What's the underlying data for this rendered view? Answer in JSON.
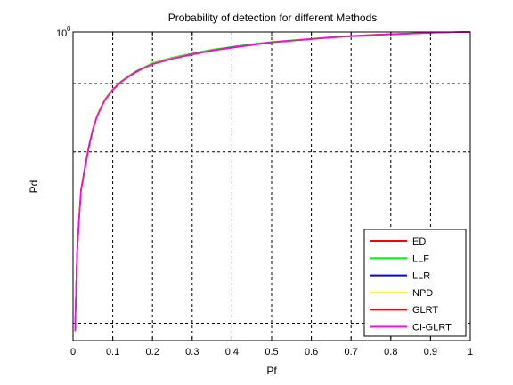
{
  "chart_data": {
    "type": "line",
    "title": "Probability of detection for different Methods",
    "xlabel": "Pf",
    "ylabel": "Pd",
    "xlim": [
      0,
      1
    ],
    "ylim_log10": [
      -1.8,
      0
    ],
    "y_scale": "log",
    "y_tick_label": {
      "base": "10",
      "exp": "0"
    },
    "x_ticks": [
      "0",
      "0.1",
      "0.2",
      "0.3",
      "0.4",
      "0.5",
      "0.6",
      "0.7",
      "0.8",
      "0.9",
      "1"
    ],
    "grid": true,
    "legend_position": "bottom-right",
    "x": [
      0.005,
      0.01,
      0.015,
      0.02,
      0.03,
      0.04,
      0.05,
      0.06,
      0.07,
      0.08,
      0.09,
      0.1,
      0.12,
      0.14,
      0.16,
      0.18,
      0.2,
      0.25,
      0.3,
      0.35,
      0.4,
      0.45,
      0.5,
      0.55,
      0.6,
      0.65,
      0.7,
      0.75,
      0.8,
      0.85,
      0.9,
      0.95,
      1.0
    ],
    "series": [
      {
        "name": "ED",
        "color": "#ff0000",
        "values": [
          0.018,
          0.05,
          0.08,
          0.12,
          0.16,
          0.215,
          0.27,
          0.32,
          0.36,
          0.4,
          0.43,
          0.46,
          0.51,
          0.55,
          0.59,
          0.62,
          0.65,
          0.7,
          0.74,
          0.78,
          0.81,
          0.84,
          0.87,
          0.89,
          0.91,
          0.93,
          0.945,
          0.96,
          0.97,
          0.98,
          0.99,
          0.997,
          1.0
        ]
      },
      {
        "name": "LLF",
        "color": "#00ff00",
        "values": [
          0.018,
          0.052,
          0.082,
          0.12,
          0.165,
          0.22,
          0.275,
          0.325,
          0.365,
          0.405,
          0.435,
          0.465,
          0.515,
          0.555,
          0.595,
          0.625,
          0.66,
          0.71,
          0.75,
          0.79,
          0.82,
          0.85,
          0.875,
          0.895,
          0.915,
          0.935,
          0.95,
          0.962,
          0.972,
          0.982,
          0.99,
          0.997,
          1.0
        ]
      },
      {
        "name": "LLR",
        "color": "#0000ff",
        "values": [
          0.018,
          0.05,
          0.08,
          0.118,
          0.162,
          0.215,
          0.27,
          0.32,
          0.36,
          0.4,
          0.43,
          0.46,
          0.51,
          0.55,
          0.585,
          0.62,
          0.65,
          0.7,
          0.745,
          0.78,
          0.815,
          0.845,
          0.87,
          0.89,
          0.91,
          0.93,
          0.945,
          0.96,
          0.97,
          0.98,
          0.99,
          0.997,
          1.0
        ]
      },
      {
        "name": "NPD",
        "color": "#ffff00",
        "values": [
          0.018,
          0.05,
          0.08,
          0.12,
          0.16,
          0.215,
          0.272,
          0.322,
          0.362,
          0.402,
          0.432,
          0.462,
          0.512,
          0.552,
          0.59,
          0.622,
          0.652,
          0.702,
          0.742,
          0.782,
          0.812,
          0.842,
          0.87,
          0.89,
          0.912,
          0.93,
          0.945,
          0.96,
          0.97,
          0.98,
          0.99,
          0.997,
          1.0
        ]
      },
      {
        "name": "GLRT",
        "color": "#ff0000",
        "values": [
          0.018,
          0.05,
          0.08,
          0.12,
          0.16,
          0.215,
          0.27,
          0.32,
          0.36,
          0.4,
          0.43,
          0.46,
          0.51,
          0.55,
          0.59,
          0.62,
          0.65,
          0.7,
          0.74,
          0.78,
          0.81,
          0.84,
          0.87,
          0.89,
          0.91,
          0.93,
          0.945,
          0.96,
          0.97,
          0.98,
          0.99,
          0.997,
          1.0
        ]
      },
      {
        "name": "CI-GLRT",
        "color": "#ff00ff",
        "values": [
          0.018,
          0.05,
          0.078,
          0.118,
          0.158,
          0.212,
          0.268,
          0.318,
          0.358,
          0.398,
          0.428,
          0.458,
          0.508,
          0.548,
          0.588,
          0.618,
          0.648,
          0.698,
          0.738,
          0.778,
          0.808,
          0.838,
          0.868,
          0.888,
          0.908,
          0.928,
          0.943,
          0.958,
          0.968,
          0.978,
          0.988,
          0.996,
          1.0
        ]
      }
    ]
  }
}
